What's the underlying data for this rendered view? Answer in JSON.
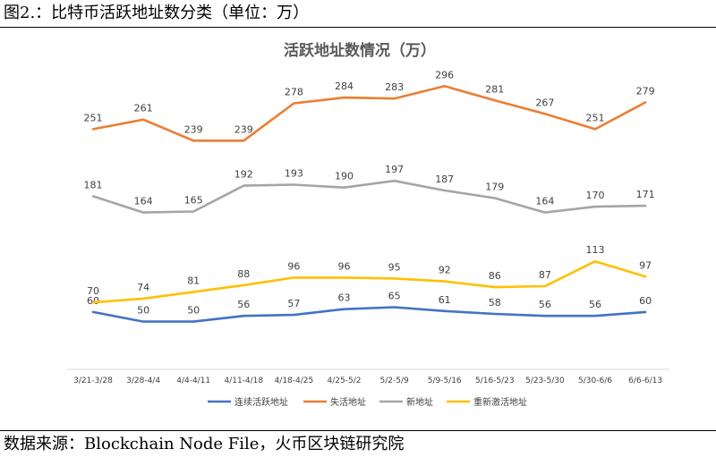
{
  "caption": "图2.：比特币活跃地址数分类（单位：万）",
  "source": "数据来源：Blockchain Node File，火币区块链研究院",
  "chart_data": {
    "type": "line",
    "title": "活跃地址数情况（万）",
    "xlabel": "",
    "ylabel": "",
    "categories": [
      "3/21-3/28",
      "3/28-4/4",
      "4/4-4/11",
      "4/11-4/18",
      "4/18-4/25",
      "4/25-5/2",
      "5/2-5/9",
      "5/9-5/16",
      "5/16-5/23",
      "5/23-5/30",
      "5/30-6/6",
      "6/6-6/13"
    ],
    "series": [
      {
        "name": "连续活跃地址",
        "color": "#4472C4",
        "values": [
          60,
          50,
          50,
          56,
          57,
          63,
          65,
          61,
          58,
          56,
          56,
          60
        ]
      },
      {
        "name": "失活地址",
        "color": "#ED7D31",
        "values": [
          251,
          261,
          239,
          239,
          278,
          284,
          283,
          296,
          281,
          267,
          251,
          279
        ]
      },
      {
        "name": "新地址",
        "color": "#A5A5A5",
        "values": [
          181,
          164,
          165,
          192,
          193,
          190,
          197,
          187,
          179,
          164,
          170,
          171
        ]
      },
      {
        "name": "重新激活地址",
        "color": "#FFC000",
        "values": [
          70,
          74,
          81,
          88,
          96,
          96,
          95,
          92,
          86,
          87,
          113,
          97
        ]
      }
    ],
    "ylim": [
      30,
      300
    ],
    "grid": false,
    "legend_position": "bottom"
  }
}
